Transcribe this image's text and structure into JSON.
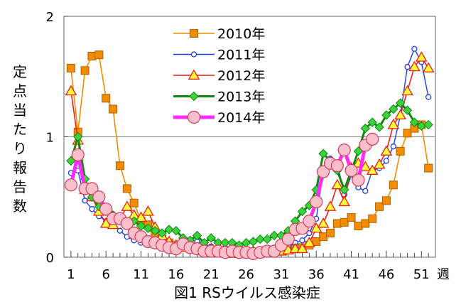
{
  "chart_data": {
    "type": "line",
    "title": "",
    "caption": "図1  RSウイルス感染症",
    "ylabel": "定点当たり報告数",
    "xunit": "週",
    "xlim": [
      0,
      53
    ],
    "ylim": [
      0,
      2
    ],
    "xticks": [
      1,
      6,
      11,
      16,
      21,
      26,
      31,
      36,
      41,
      46,
      51
    ],
    "yticks": [
      0,
      1,
      2
    ],
    "grid_y": [
      1
    ],
    "legend_position": "top-center",
    "series": [
      {
        "name": "2010年",
        "color": "#f28c00",
        "marker": "square",
        "x": [
          1,
          2,
          3,
          4,
          5,
          6,
          7,
          8,
          9,
          10,
          11,
          12,
          13,
          14,
          15,
          16,
          17,
          18,
          19,
          20,
          21,
          22,
          23,
          24,
          25,
          26,
          27,
          28,
          29,
          30,
          31,
          32,
          33,
          34,
          35,
          36,
          37,
          38,
          39,
          40,
          41,
          42,
          43,
          44,
          45,
          46,
          47,
          48,
          49,
          50,
          51,
          52
        ],
        "y": [
          1.57,
          1.04,
          1.55,
          1.67,
          1.68,
          1.32,
          1.23,
          0.76,
          0.57,
          0.45,
          0.3,
          0.27,
          0.2,
          0.15,
          0.12,
          0.1,
          0.1,
          0.08,
          0.07,
          0.06,
          0.05,
          0.04,
          0.04,
          0.03,
          0.03,
          0.03,
          0.03,
          0.04,
          0.04,
          0.05,
          0.05,
          0.06,
          0.07,
          0.08,
          0.1,
          0.13,
          0.17,
          0.2,
          0.28,
          0.29,
          0.33,
          0.26,
          0.28,
          0.32,
          0.42,
          0.47,
          0.6,
          0.88,
          1.03,
          1.07,
          1.1,
          0.74
        ]
      },
      {
        "name": "2011年",
        "color": "#1a3ee8",
        "marker": "circle-small",
        "x": [
          1,
          2,
          3,
          4,
          5,
          6,
          7,
          8,
          9,
          10,
          11,
          12,
          13,
          14,
          15,
          16,
          17,
          18,
          19,
          20,
          21,
          22,
          23,
          24,
          25,
          26,
          27,
          28,
          29,
          30,
          31,
          32,
          33,
          34,
          35,
          36,
          37,
          38,
          39,
          40,
          41,
          42,
          43,
          44,
          45,
          46,
          47,
          48,
          49,
          50,
          51,
          52
        ],
        "y": [
          0.7,
          0.72,
          0.47,
          0.4,
          0.34,
          0.3,
          0.28,
          0.22,
          0.17,
          0.14,
          0.12,
          0.1,
          0.1,
          0.09,
          0.08,
          0.09,
          0.08,
          0.08,
          0.13,
          0.11,
          0.09,
          0.08,
          0.08,
          0.07,
          0.06,
          0.06,
          0.06,
          0.05,
          0.07,
          0.08,
          0.08,
          0.09,
          0.12,
          0.14,
          0.2,
          0.32,
          0.72,
          0.82,
          0.78,
          0.52,
          0.68,
          0.58,
          0.55,
          0.72,
          0.74,
          0.8,
          0.92,
          1.18,
          1.58,
          1.73,
          1.62,
          1.33
        ]
      },
      {
        "name": "2012年",
        "color": "#ee1c1c",
        "marker": "triangle",
        "x": [
          1,
          2,
          3,
          4,
          5,
          6,
          7,
          8,
          9,
          10,
          11,
          12,
          13,
          14,
          15,
          16,
          17,
          18,
          19,
          20,
          21,
          22,
          23,
          24,
          25,
          26,
          27,
          28,
          29,
          30,
          31,
          32,
          33,
          34,
          35,
          36,
          37,
          38,
          39,
          40,
          41,
          42,
          43,
          44,
          45,
          46,
          47,
          48,
          49,
          50,
          51,
          52
        ],
        "y": [
          1.38,
          0.97,
          0.56,
          0.5,
          0.38,
          0.28,
          0.27,
          0.32,
          0.42,
          0.35,
          0.33,
          0.38,
          0.25,
          0.18,
          0.13,
          0.1,
          0.08,
          0.08,
          0.07,
          0.06,
          0.07,
          0.05,
          0.05,
          0.04,
          0.04,
          0.04,
          0.05,
          0.04,
          0.05,
          0.05,
          0.05,
          0.06,
          0.07,
          0.07,
          0.12,
          0.24,
          0.28,
          0.42,
          0.6,
          0.46,
          0.74,
          0.78,
          0.75,
          0.72,
          0.77,
          0.88,
          1.1,
          1.18,
          1.38,
          1.58,
          1.66,
          1.57
        ]
      },
      {
        "name": "2013年",
        "color": "#118811",
        "marker": "diamond",
        "x": [
          1,
          2,
          3,
          4,
          5,
          6,
          7,
          8,
          9,
          10,
          11,
          12,
          13,
          14,
          15,
          16,
          17,
          18,
          19,
          20,
          21,
          22,
          23,
          24,
          25,
          26,
          27,
          28,
          29,
          30,
          31,
          32,
          33,
          34,
          35,
          36,
          37,
          38,
          39,
          40,
          41,
          42,
          43,
          44,
          45,
          46,
          47,
          48,
          49,
          50,
          51,
          52
        ],
        "y": [
          0.8,
          1.0,
          0.65,
          0.5,
          0.42,
          0.38,
          0.35,
          0.32,
          0.28,
          0.3,
          0.26,
          0.24,
          0.22,
          0.2,
          0.23,
          0.22,
          0.16,
          0.14,
          0.18,
          0.12,
          0.16,
          0.12,
          0.12,
          0.12,
          0.1,
          0.12,
          0.13,
          0.15,
          0.15,
          0.18,
          0.18,
          0.22,
          0.3,
          0.38,
          0.43,
          0.56,
          0.86,
          0.8,
          0.72,
          0.56,
          0.72,
          0.88,
          1.07,
          1.12,
          1.08,
          1.18,
          1.23,
          1.28,
          1.22,
          1.12,
          1.09,
          1.1
        ]
      },
      {
        "name": "2014年",
        "color": "#ff2cff",
        "marker": "circle-large",
        "fill": "#f9c0cc",
        "x": [
          1,
          2,
          3,
          4,
          5,
          6,
          7,
          8,
          9,
          10,
          11,
          12,
          13,
          14,
          15,
          16,
          17,
          18,
          19,
          20,
          21,
          22,
          23,
          24,
          25,
          26,
          27,
          28,
          29,
          30,
          31,
          32,
          33,
          34,
          35,
          36,
          37,
          38,
          39,
          40,
          41,
          42,
          43,
          44
        ],
        "y": [
          0.6,
          0.85,
          0.57,
          0.57,
          0.5,
          0.4,
          0.32,
          0.32,
          0.28,
          0.2,
          0.17,
          0.13,
          0.12,
          0.1,
          0.08,
          0.07,
          0.11,
          0.08,
          0.07,
          0.05,
          0.05,
          0.05,
          0.04,
          0.05,
          0.04,
          0.04,
          0.03,
          0.04,
          0.05,
          0.05,
          0.1,
          0.15,
          0.23,
          0.24,
          0.3,
          0.46,
          0.71,
          0.78,
          0.76,
          0.89,
          0.72,
          0.64,
          0.93,
          0.98
        ]
      }
    ]
  }
}
